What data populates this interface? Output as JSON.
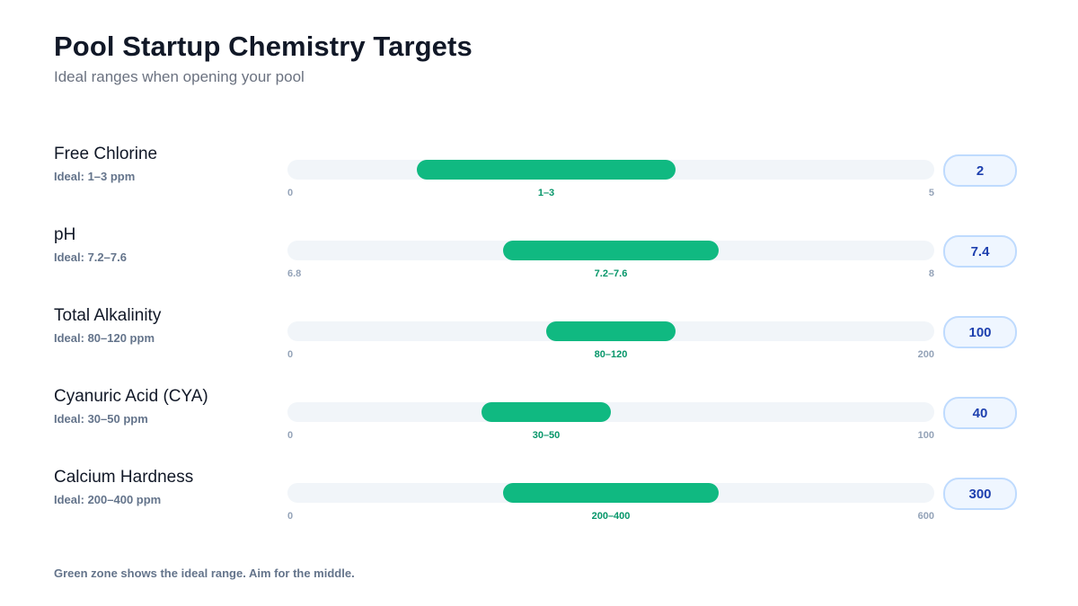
{
  "title": "Pool Startup Chemistry Targets",
  "subtitle": "Ideal ranges when opening your pool",
  "footnote": "Green zone shows the ideal range. Aim for the middle.",
  "colors": {
    "ideal_zone": "#10b981",
    "zone_label": "#059669",
    "track": "#f1f5f9",
    "value_pill_text": "#1e40af",
    "value_pill_bg": "#eff6ff",
    "value_pill_border": "#bfdbfe"
  },
  "chart_data": {
    "type": "bar",
    "title": "Pool Startup Chemistry Targets",
    "subtitle": "Ideal ranges when opening your pool",
    "series": [
      {
        "name": "Free Chlorine",
        "ideal_text": "Ideal: 1–3 ppm",
        "axis_min": 0,
        "axis_max": 5,
        "axis_min_label": "0",
        "axis_max_label": "5",
        "ideal_low": 1,
        "ideal_high": 3,
        "range_label": "1–3",
        "value": 2,
        "value_label": "2"
      },
      {
        "name": "pH",
        "ideal_text": "Ideal: 7.2–7.6",
        "axis_min": 6.8,
        "axis_max": 8,
        "axis_min_label": "6.8",
        "axis_max_label": "8",
        "ideal_low": 7.2,
        "ideal_high": 7.6,
        "range_label": "7.2–7.6",
        "value": 7.4,
        "value_label": "7.4"
      },
      {
        "name": "Total Alkalinity",
        "ideal_text": "Ideal: 80–120 ppm",
        "axis_min": 0,
        "axis_max": 200,
        "axis_min_label": "0",
        "axis_max_label": "200",
        "ideal_low": 80,
        "ideal_high": 120,
        "range_label": "80–120",
        "value": 100,
        "value_label": "100"
      },
      {
        "name": "Cyanuric Acid (CYA)",
        "ideal_text": "Ideal: 30–50 ppm",
        "axis_min": 0,
        "axis_max": 100,
        "axis_min_label": "0",
        "axis_max_label": "100",
        "ideal_low": 30,
        "ideal_high": 50,
        "range_label": "30–50",
        "value": 40,
        "value_label": "40"
      },
      {
        "name": "Calcium Hardness",
        "ideal_text": "Ideal: 200–400 ppm",
        "axis_min": 0,
        "axis_max": 600,
        "axis_min_label": "0",
        "axis_max_label": "600",
        "ideal_low": 200,
        "ideal_high": 400,
        "range_label": "200–400",
        "value": 300,
        "value_label": "300"
      }
    ]
  }
}
